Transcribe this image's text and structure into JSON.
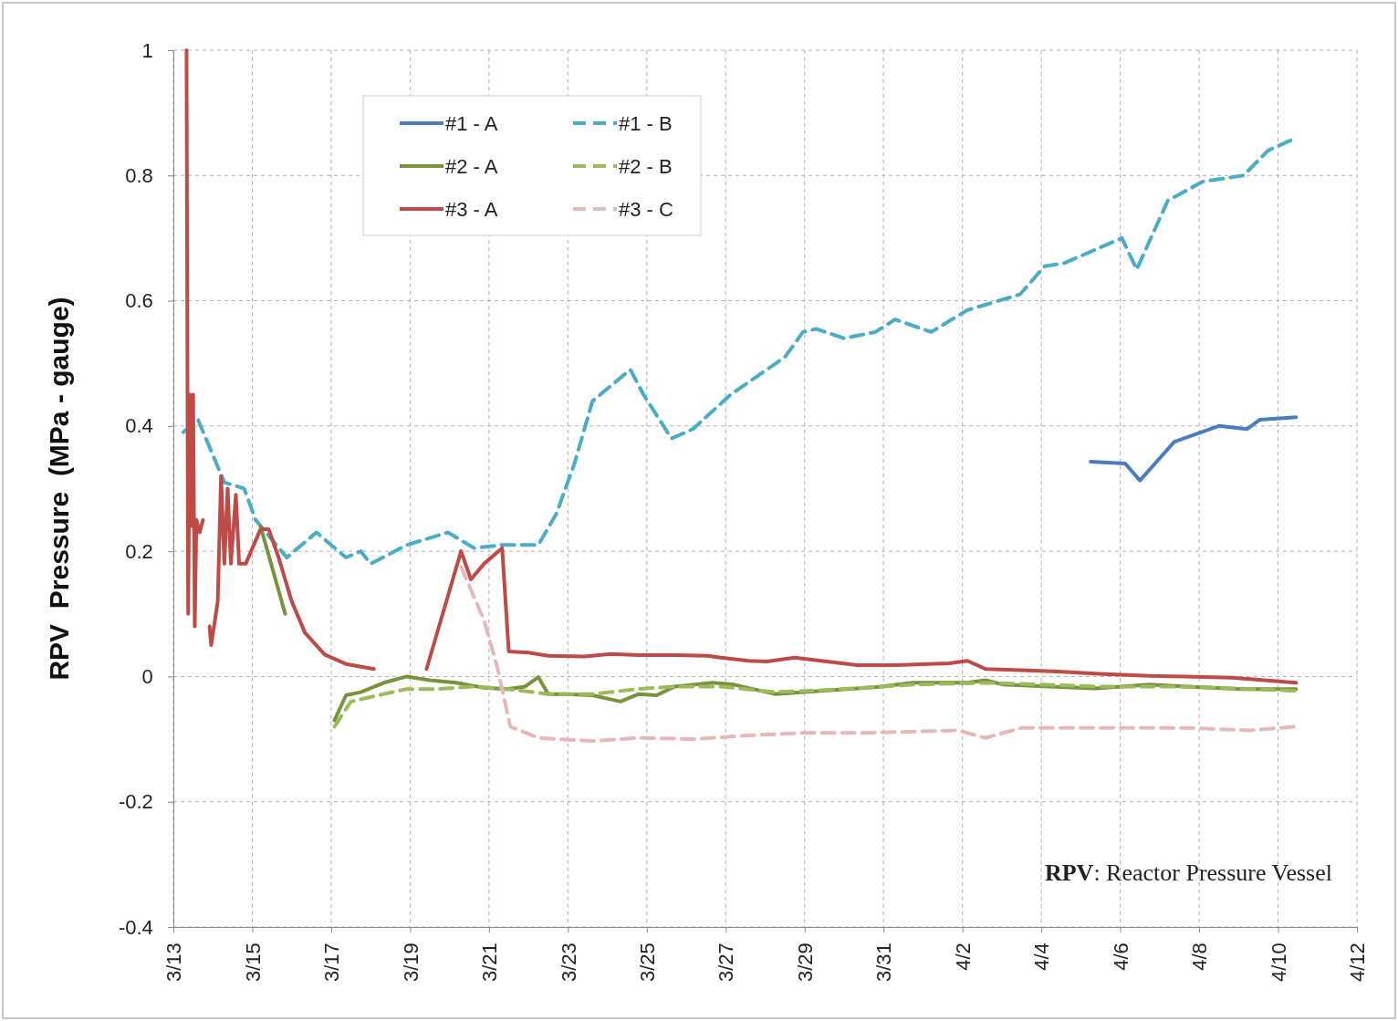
{
  "chart_data": {
    "type": "line",
    "ylabel": "RPV  Pressure  (MPa - gauge)",
    "xlim": [
      "--03-13",
      "--04-12"
    ],
    "xticks": [
      {
        "value": "--03-13",
        "label": "3/13"
      },
      {
        "value": "--03-15",
        "label": "3/15"
      },
      {
        "value": "--03-17",
        "label": "3/17"
      },
      {
        "value": "--03-19",
        "label": "3/19"
      },
      {
        "value": "--03-21",
        "label": "3/21"
      },
      {
        "value": "--03-23",
        "label": "3/23"
      },
      {
        "value": "--03-25",
        "label": "3/25"
      },
      {
        "value": "--03-27",
        "label": "3/27"
      },
      {
        "value": "--03-29",
        "label": "3/29"
      },
      {
        "value": "--03-31",
        "label": "3/31"
      },
      {
        "value": "--04-02",
        "label": "4/2"
      },
      {
        "value": "--04-04",
        "label": "4/4"
      },
      {
        "value": "--04-06",
        "label": "4/6"
      },
      {
        "value": "--04-08",
        "label": "4/8"
      },
      {
        "value": "--04-10",
        "label": "4/10"
      },
      {
        "value": "--04-12",
        "label": "4/12"
      }
    ],
    "ylim": [
      -0.4,
      1
    ],
    "yticks": [
      -0.4,
      -0.2,
      0,
      0.2,
      0.4,
      0.6,
      0.8,
      1
    ],
    "grid": true,
    "legend": "top left",
    "marker": "none",
    "annotations": [
      "RPV: Reactor Pressure Vessel"
    ],
    "series": [
      {
        "name": "#1 - A",
        "color": "#4a7ebb",
        "line_style": "solid",
        "x": [
          "--04-05T06:00",
          "--04-06T03:00",
          "--04-06T12:00",
          "--04-07T09:00",
          "--04-08T12:00",
          "--04-09T05:00",
          "--04-09T13:00",
          "--04-10T11:00"
        ],
        "values": [
          0.343,
          0.34,
          0.313,
          0.375,
          0.4,
          0.395,
          0.41,
          0.414
        ]
      },
      {
        "name": "#1 - B",
        "color": "#4bacc6",
        "line_style": "dashed",
        "x": [
          "--03-13T06:00",
          "--03-13T15:00",
          "--03-14T07:00",
          "--03-14T19:00",
          "--03-15T02:00",
          "--03-15T21:00",
          "--03-16T15:00",
          "--03-17T09:00",
          "--03-17T18:00",
          "--03-18T00:00",
          "--03-18T22:00",
          "--03-19T23:00",
          "--03-20T15:00",
          "--03-21T08:00",
          "--03-22T06:00",
          "--03-22T17:00",
          "--03-23T04:00",
          "--03-23T15:00",
          "--03-24T14:00",
          "--03-24T22:00",
          "--03-25T15:00",
          "--03-26T04:00",
          "--03-27T03:00",
          "--03-28T12:00",
          "--03-28T23:00",
          "--03-29T07:00",
          "--03-30T00:00",
          "--03-30T19:00",
          "--03-31T07:00",
          "--04-01T05:00",
          "--04-02T03:00",
          "--04-03T11:00",
          "--04-04T02:00",
          "--04-04T14:00",
          "--04-06T01:00",
          "--04-06T10:00",
          "--04-07T05:00",
          "--04-08T02:00",
          "--04-09T03:00",
          "--04-09T18:00",
          "--04-10T11:00"
        ],
        "values": [
          0.39,
          0.41,
          0.31,
          0.3,
          0.25,
          0.19,
          0.23,
          0.19,
          0.2,
          0.18,
          0.21,
          0.23,
          0.205,
          0.21,
          0.21,
          0.26,
          0.34,
          0.44,
          0.49,
          0.45,
          0.38,
          0.395,
          0.45,
          0.51,
          0.55,
          0.555,
          0.54,
          0.55,
          0.57,
          0.55,
          0.585,
          0.61,
          0.655,
          0.66,
          0.7,
          0.65,
          0.76,
          0.79,
          0.8,
          0.84,
          0.86
        ]
      },
      {
        "name": "#2 - A",
        "color": "#77933c",
        "line_style": "solid",
        "x": [
          "--03-15T05:00",
          "--03-15T20:00",
          "--03-16T12:00",
          "--03-17T02:00",
          "--03-17T09:00",
          "--03-17T18:00",
          "--03-18T08:00",
          "--03-18T22:00",
          "--03-19T12:00",
          "--03-20T04:00",
          "--03-20T21:00",
          "--03-21T11:00",
          "--03-21T22:00",
          "--03-22T06:00",
          "--03-22T12:00",
          "--03-22T23:00",
          "--03-23T15:00",
          "--03-24T08:00",
          "--03-24T19:00",
          "--03-25T06:00",
          "--03-25T17:00",
          "--03-26T16:00",
          "--03-27T05:00",
          "--03-28T06:00",
          "--03-29T10:00",
          "--03-30T20:00",
          "--03-31T18:00",
          "--04-02T03:00",
          "--04-02T14:00",
          "--04-03T01:00",
          "--04-04T05:00",
          "--04-05T09:00",
          "--04-06T18:00",
          "--04-07T16:00",
          "--04-09T02:00",
          "--04-10T11:00"
        ],
        "values": [
          0.24,
          0.1,
          null,
          -0.07,
          -0.03,
          -0.025,
          -0.01,
          0,
          -0.006,
          -0.01,
          -0.018,
          -0.02,
          -0.016,
          -0.001,
          -0.028,
          -0.028,
          -0.03,
          -0.04,
          -0.028,
          -0.03,
          -0.016,
          -0.01,
          -0.013,
          -0.028,
          -0.023,
          -0.017,
          -0.01,
          -0.01,
          -0.006,
          -0.013,
          -0.016,
          -0.019,
          -0.013,
          -0.016,
          -0.02,
          -0.02
        ]
      },
      {
        "name": "#2 - B",
        "color": "#9bbb59",
        "line_style": "dashed",
        "x": [
          "--03-17T02:00",
          "--03-17T12:00",
          "--03-18T08:00",
          "--03-18T22:00",
          "--03-19T17:00",
          "--03-20T15:00",
          "--03-21T11:00",
          "--03-22T12:00",
          "--03-23T15:00",
          "--03-24T19:00",
          "--03-25T17:00",
          "--03-26T21:00",
          "--03-28T06:00",
          "--03-29T10:00",
          "--03-31T18:00",
          "--04-02T14:00",
          "--04-05T09:00",
          "--04-07T16:00",
          "--04-10T11:00"
        ],
        "values": [
          -0.08,
          -0.04,
          -0.028,
          -0.02,
          -0.02,
          -0.016,
          -0.02,
          -0.028,
          -0.028,
          -0.02,
          -0.016,
          -0.016,
          -0.025,
          -0.022,
          -0.013,
          -0.01,
          -0.016,
          -0.016,
          -0.023
        ]
      },
      {
        "name": "#3 - A",
        "color": "#be4b48",
        "line_style": "solid",
        "x": [
          "--03-13T08:00",
          "--03-13T09:00",
          "--03-13T10:00",
          "--03-13T11:00",
          "--03-13T12:00",
          "--03-13T13:00",
          "--03-13T14:00",
          "--03-13T16:00",
          "--03-13T18:00",
          "--03-13T20:00",
          "--03-13T22:00",
          "--03-13T23:00",
          "--03-14T03:00",
          "--03-14T05:00",
          "--03-14T07:00",
          "--03-14T09:00",
          "--03-14T11:00",
          "--03-14T14:00",
          "--03-14T16:00",
          "--03-14T20:00",
          "--03-15T05:00",
          "--03-15T10:00",
          "--03-15T16:00",
          "--03-16T00:00",
          "--03-16T08:00",
          "--03-16T20:00",
          "--03-17T09:00",
          "--03-18T02:00",
          "--03-18T18:00",
          "--03-19T10:00",
          "--03-20T07:00",
          "--03-20T13:00",
          "--03-20T21:00",
          "--03-21T08:00",
          "--03-21T12:00",
          "--03-22T00:00",
          "--03-22T12:00",
          "--03-23T10:00",
          "--03-24T02:00",
          "--03-24T19:00",
          "--03-25T17:00",
          "--03-26T13:00",
          "--03-26T21:00",
          "--03-27T14:00",
          "--03-28T01:00",
          "--03-28T18:00",
          "--03-29T10:00",
          "--03-30T08:00",
          "--03-31T07:00",
          "--04-01T16:00",
          "--04-02T03:00",
          "--04-02T14:00",
          "--04-03T12:00",
          "--04-04T10:00",
          "--04-05T14:00",
          "--04-06T18:00",
          "--04-07T16:00",
          "--04-08T20:00",
          "--04-10T11:00"
        ],
        "values": [
          1,
          0.1,
          0.45,
          0.24,
          0.45,
          0.08,
          0.25,
          0.23,
          0.25,
          null,
          0.08,
          0.05,
          0.12,
          0.32,
          0.18,
          0.3,
          0.18,
          0.29,
          0.18,
          0.18,
          0.235,
          0.235,
          0.19,
          0.12,
          0.07,
          0.035,
          0.02,
          0.012,
          null,
          0.012,
          0.2,
          0.155,
          0.18,
          0.205,
          0.04,
          0.038,
          0.033,
          0.032,
          0.036,
          0.034,
          0.034,
          0.033,
          0.03,
          0.025,
          0.024,
          0.03,
          0.025,
          0.018,
          0.018,
          0.021,
          0.025,
          0.012,
          0.01,
          0.008,
          0.004,
          0.001,
          0,
          -0.002,
          -0.01
        ]
      },
      {
        "name": "#3 - C",
        "color": "#e6b9b8",
        "line_style": "dashed",
        "x": [
          "--03-20T07:00",
          "--03-20T21:00",
          "--03-21T05:00",
          "--03-21T13:00",
          "--03-22T06:00",
          "--03-23T15:00",
          "--03-24T19:00",
          "--03-26T05:00",
          "--03-27T14:00",
          "--03-28T23:00",
          "--03-30T14:00",
          "--04-01T21:00",
          "--04-02T14:00",
          "--04-03T12:00",
          "--04-05T09:00",
          "--04-07T16:00",
          "--04-09T07:00",
          "--04-10T11:00"
        ],
        "values": [
          0.175,
          0.09,
          0.015,
          -0.08,
          -0.098,
          -0.103,
          -0.098,
          -0.1,
          -0.094,
          -0.09,
          -0.09,
          -0.086,
          -0.098,
          -0.082,
          -0.082,
          -0.082,
          -0.086,
          -0.08
        ]
      }
    ]
  }
}
